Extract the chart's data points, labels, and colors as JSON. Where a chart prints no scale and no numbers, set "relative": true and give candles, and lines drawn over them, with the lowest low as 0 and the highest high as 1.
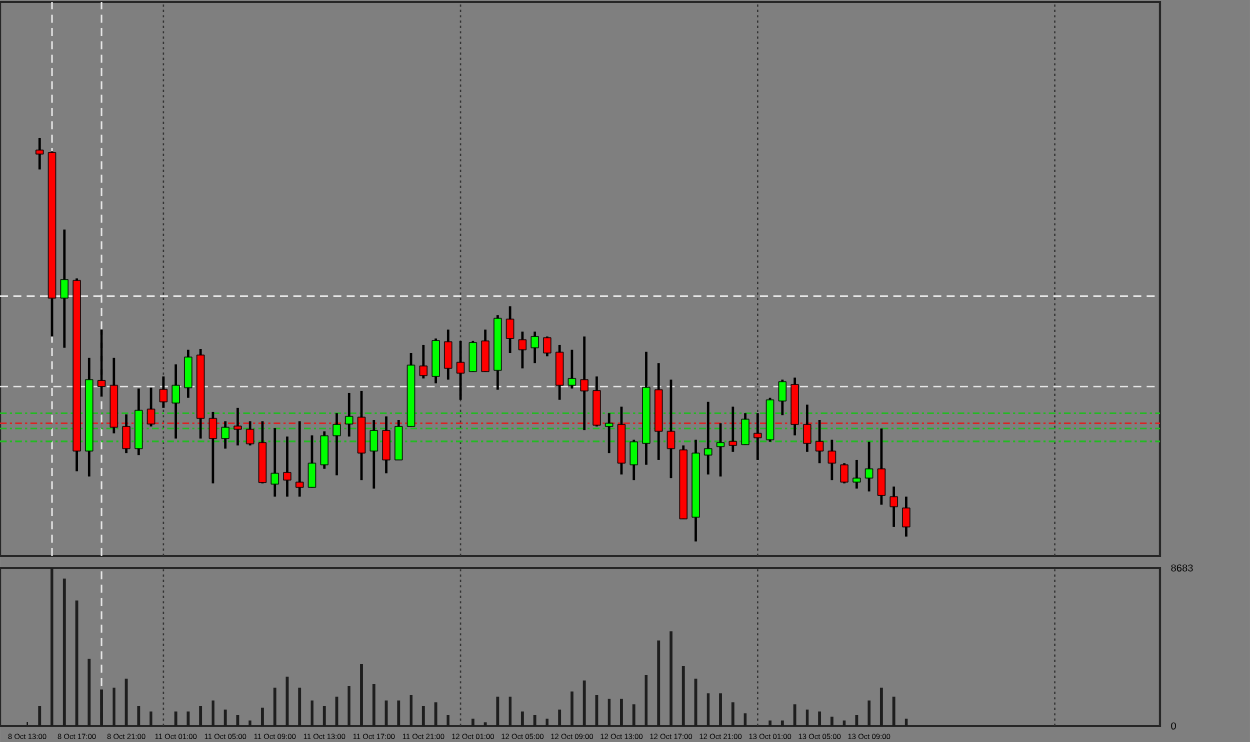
{
  "chart_data": [
    {
      "type": "candlestick",
      "relative": true,
      "categories": [
        null,
        null,
        null,
        null,
        null,
        null,
        null,
        null,
        null,
        null,
        null,
        null,
        null,
        null,
        null,
        null,
        null,
        null,
        null,
        null,
        null,
        null,
        null,
        null,
        null,
        null,
        null,
        null,
        null,
        null,
        null,
        null,
        null,
        null,
        null,
        null,
        null,
        null,
        null,
        null,
        null,
        null,
        null,
        null,
        null,
        null,
        null,
        null,
        null,
        null,
        null,
        null,
        null,
        null,
        null,
        null,
        null,
        null,
        null,
        null,
        null,
        null,
        null,
        null,
        null,
        null,
        null,
        null,
        null,
        null,
        null,
        null,
        null,
        null,
        null,
        null,
        null,
        null,
        null,
        null,
        null,
        null,
        null,
        null,
        null,
        null,
        null,
        null,
        null,
        null,
        null,
        null
      ],
      "ohlc": [
        null,
        [
          0.97,
          1.0,
          0.922,
          0.96
        ],
        [
          0.964,
          0.967,
          0.508,
          0.603
        ],
        [
          0.603,
          0.773,
          0.48,
          0.649
        ],
        [
          0.647,
          0.652,
          0.174,
          0.224
        ],
        [
          0.224,
          0.455,
          0.161,
          0.401
        ],
        [
          0.399,
          0.525,
          0.359,
          0.384
        ],
        [
          0.387,
          0.455,
          0.268,
          0.283
        ],
        [
          0.285,
          0.315,
          0.219,
          0.23
        ],
        [
          0.23,
          0.379,
          0.214,
          0.325
        ],
        [
          0.328,
          0.381,
          0.285,
          0.291
        ],
        [
          0.377,
          0.409,
          0.331,
          0.346
        ],
        [
          0.343,
          0.439,
          0.255,
          0.387
        ],
        [
          0.381,
          0.475,
          0.356,
          0.457
        ],
        [
          0.462,
          0.477,
          0.255,
          0.305
        ],
        [
          0.305,
          0.321,
          0.144,
          0.255
        ],
        [
          0.255,
          0.298,
          0.23,
          0.283
        ],
        [
          0.286,
          0.331,
          0.238,
          0.278
        ],
        [
          0.278,
          0.298,
          0.238,
          0.242
        ],
        [
          0.245,
          0.298,
          0.144,
          0.146
        ],
        [
          0.142,
          0.281,
          0.111,
          0.169
        ],
        [
          0.171,
          0.26,
          0.111,
          0.152
        ],
        [
          0.147,
          0.298,
          0.111,
          0.134
        ],
        [
          0.134,
          0.263,
          0.134,
          0.194
        ],
        [
          0.19,
          0.273,
          0.18,
          0.262
        ],
        [
          0.262,
          0.318,
          0.164,
          0.29
        ],
        [
          0.291,
          0.368,
          0.26,
          0.31
        ],
        [
          0.308,
          0.373,
          0.152,
          0.219
        ],
        [
          0.224,
          0.301,
          0.131,
          0.275
        ],
        [
          0.275,
          0.31,
          0.169,
          0.202
        ],
        [
          0.202,
          0.301,
          0.202,
          0.285
        ],
        [
          0.285,
          0.467,
          0.285,
          0.437
        ],
        [
          0.435,
          0.487,
          0.404,
          0.411
        ],
        [
          0.409,
          0.503,
          0.392,
          0.498
        ],
        [
          0.495,
          0.525,
          0.401,
          0.429
        ],
        [
          0.444,
          0.497,
          0.351,
          0.417
        ],
        [
          0.421,
          0.497,
          0.421,
          0.493
        ],
        [
          0.497,
          0.525,
          0.421,
          0.421
        ],
        [
          0.424,
          0.561,
          0.376,
          0.553
        ],
        [
          0.551,
          0.583,
          0.467,
          0.503
        ],
        [
          0.5,
          0.52,
          0.429,
          0.475
        ],
        [
          0.48,
          0.52,
          0.442,
          0.508
        ],
        [
          0.505,
          0.508,
          0.459,
          0.467
        ],
        [
          0.469,
          0.487,
          0.351,
          0.387
        ],
        [
          0.387,
          0.475,
          0.379,
          0.404
        ],
        [
          0.401,
          0.508,
          0.276,
          0.373
        ],
        [
          0.374,
          0.409,
          0.285,
          0.288
        ],
        [
          0.285,
          0.318,
          0.219,
          0.293
        ],
        [
          0.29,
          0.334,
          0.166,
          0.194
        ],
        [
          0.19,
          0.252,
          0.152,
          0.247
        ],
        [
          0.243,
          0.47,
          0.19,
          0.382
        ],
        [
          0.376,
          0.442,
          0.202,
          0.273
        ],
        [
          0.273,
          0.401,
          0.157,
          0.23
        ],
        [
          0.227,
          0.238,
          0.056,
          0.056
        ],
        [
          0.06,
          0.252,
          0.0,
          0.219
        ],
        [
          0.214,
          0.346,
          0.166,
          0.23
        ],
        [
          0.235,
          0.293,
          0.161,
          0.245
        ],
        [
          0.248,
          0.334,
          0.222,
          0.238
        ],
        [
          0.24,
          0.318,
          0.24,
          0.303
        ],
        [
          0.268,
          0.318,
          0.202,
          0.257
        ],
        [
          0.252,
          0.356,
          0.247,
          0.351
        ],
        [
          0.348,
          0.401,
          0.313,
          0.396
        ],
        [
          0.389,
          0.406,
          0.263,
          0.29
        ],
        [
          0.29,
          0.339,
          0.222,
          0.243
        ],
        [
          0.248,
          0.301,
          0.194,
          0.224
        ],
        [
          0.224,
          0.252,
          0.152,
          0.194
        ],
        [
          0.19,
          0.194,
          0.144,
          0.147
        ],
        [
          0.147,
          0.202,
          0.131,
          0.157
        ],
        [
          0.157,
          0.247,
          0.124,
          0.18
        ],
        [
          0.18,
          0.28,
          0.091,
          0.114
        ],
        [
          0.111,
          0.136,
          0.036,
          0.086
        ],
        [
          0.083,
          0.111,
          0.012,
          0.036
        ],
        null,
        null,
        null,
        null,
        null,
        null,
        null,
        null,
        null,
        null,
        null,
        null,
        null,
        null,
        null,
        null,
        null,
        null,
        null,
        null
      ],
      "ref_lines": [
        {
          "axis": "y",
          "value": 0.608,
          "color": "#e6e6e6",
          "line_style": "dashed"
        },
        {
          "axis": "y",
          "value": 0.384,
          "color": "#e6e6e6",
          "line_style": "dashed"
        },
        {
          "axis": "y",
          "value": 0.318,
          "color": "#22bb22",
          "line_style": "dashdot"
        },
        {
          "axis": "y",
          "value": 0.293,
          "color": "#dd2222",
          "line_style": "dashdot"
        },
        {
          "axis": "y",
          "value": 0.28,
          "color": "#22bb22",
          "line_style": "dashdot"
        },
        {
          "axis": "y",
          "value": 0.248,
          "color": "#22bb22",
          "line_style": "dashdot"
        }
      ],
      "grid": "x"
    },
    {
      "type": "bar",
      "color": "#1e1e1e",
      "ylim": [
        0,
        8683
      ],
      "yticks": [
        0,
        8683
      ],
      "grid": "x",
      "categories": [
        "8 Oct 13:00",
        null,
        null,
        null,
        "8 Oct 17:00",
        null,
        null,
        null,
        "8 Oct 21:00",
        null,
        null,
        null,
        "11 Oct 01:00",
        null,
        null,
        null,
        "11 Oct 05:00",
        null,
        null,
        null,
        "11 Oct 09:00",
        null,
        null,
        null,
        "11 Oct 13:00",
        null,
        null,
        null,
        "11 Oct 17:00",
        null,
        null,
        null,
        "11 Oct 21:00",
        null,
        null,
        null,
        "12 Oct 01:00",
        null,
        null,
        null,
        "12 Oct 05:00",
        null,
        null,
        null,
        "12 Oct 09:00",
        null,
        null,
        null,
        "12 Oct 13:00",
        null,
        null,
        null,
        "12 Oct 17:00",
        null,
        null,
        null,
        "12 Oct 21:00",
        null,
        null,
        null,
        "13 Oct 01:00",
        null,
        null,
        null,
        "13 Oct 05:00",
        null,
        null,
        null,
        "13 Oct 09:00",
        null,
        null,
        null,
        null,
        null,
        null,
        null,
        null,
        null,
        null,
        null,
        null,
        null,
        null,
        null,
        null,
        null,
        null,
        null,
        null,
        null,
        null,
        null
      ],
      "values": [
        null,
        1100,
        8683,
        8100,
        6900,
        3700,
        2000,
        2100,
        2600,
        1100,
        800,
        null,
        800,
        800,
        1100,
        1400,
        900,
        600,
        300,
        1000,
        2100,
        2700,
        2100,
        1400,
        1100,
        1600,
        2200,
        3400,
        2300,
        1400,
        1400,
        1700,
        1100,
        1300,
        600,
        null,
        400,
        200,
        1600,
        1600,
        800,
        600,
        400,
        900,
        1900,
        2500,
        1700,
        1500,
        1500,
        1200,
        2800,
        4700,
        5200,
        3300,
        2600,
        1800,
        1800,
        1300,
        700,
        null,
        300,
        300,
        1200,
        900,
        800,
        500,
        300,
        600,
        1400,
        2100,
        1600,
        400,
        null,
        null,
        null,
        null,
        null,
        null,
        null,
        null,
        null,
        null,
        null,
        null,
        null,
        null,
        null,
        null,
        null,
        null,
        null,
        null
      ]
    }
  ]
}
